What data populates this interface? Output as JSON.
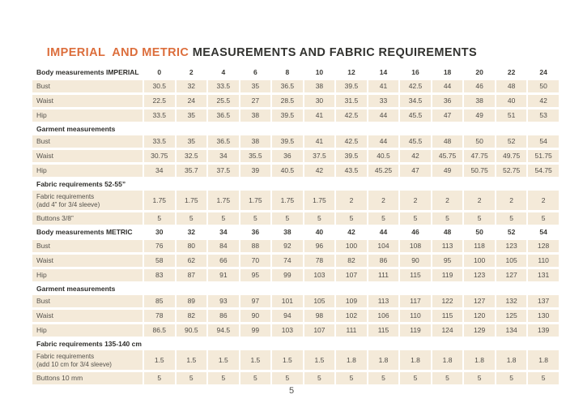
{
  "page": {
    "title_highlight": "IMPERIAL  AND METRIC ",
    "title_rest": "MEASUREMENTS AND FABRIC REQUIREMENTS",
    "page_number": "5"
  },
  "colors": {
    "accent": "#DC6E3C",
    "cell_bg": "#F4EAD9",
    "heading_text": "#2E2D2A",
    "body_text": "#55524C"
  },
  "table": {
    "columns": 13,
    "rows": [
      {
        "type": "sizes",
        "label": "Body measurements IMPERIAL",
        "values": [
          "0",
          "2",
          "4",
          "6",
          "8",
          "10",
          "12",
          "14",
          "16",
          "18",
          "20",
          "22",
          "24"
        ]
      },
      {
        "type": "data",
        "label": "Bust",
        "values": [
          "30.5",
          "32",
          "33.5",
          "35",
          "36.5",
          "38",
          "39.5",
          "41",
          "42.5",
          "44",
          "46",
          "48",
          "50"
        ]
      },
      {
        "type": "data",
        "label": "Waist",
        "values": [
          "22.5",
          "24",
          "25.5",
          "27",
          "28.5",
          "30",
          "31.5",
          "33",
          "34.5",
          "36",
          "38",
          "40",
          "42"
        ]
      },
      {
        "type": "data",
        "label": "Hip",
        "values": [
          "33.5",
          "35",
          "36.5",
          "38",
          "39.5",
          "41",
          "42.5",
          "44",
          "45.5",
          "47",
          "49",
          "51",
          "53"
        ]
      },
      {
        "type": "section",
        "label": "Garment measurements"
      },
      {
        "type": "data",
        "label": "Bust",
        "values": [
          "33.5",
          "35",
          "36.5",
          "38",
          "39.5",
          "41",
          "42.5",
          "44",
          "45.5",
          "48",
          "50",
          "52",
          "54"
        ]
      },
      {
        "type": "data",
        "label": "Waist",
        "values": [
          "30.75",
          "32.5",
          "34",
          "35.5",
          "36",
          "37.5",
          "39.5",
          "40.5",
          "42",
          "45.75",
          "47.75",
          "49.75",
          "51.75"
        ]
      },
      {
        "type": "data",
        "label": "Hip",
        "values": [
          "34",
          "35.7",
          "37.5",
          "39",
          "40.5",
          "42",
          "43.5",
          "45.25",
          "47",
          "49",
          "50.75",
          "52.75",
          "54.75"
        ]
      },
      {
        "type": "section",
        "label": "Fabric requirements 52-55”"
      },
      {
        "type": "data",
        "label": "Fabric requirements",
        "sublabel": "(add 4” for 3/4 sleeve)",
        "values": [
          "1.75",
          "1.75",
          "1.75",
          "1.75",
          "1.75",
          "1.75",
          "2",
          "2",
          "2",
          "2",
          "2",
          "2",
          "2"
        ]
      },
      {
        "type": "data",
        "label": "Buttons 3/8”",
        "values": [
          "5",
          "5",
          "5",
          "5",
          "5",
          "5",
          "5",
          "5",
          "5",
          "5",
          "5",
          "5",
          "5"
        ]
      },
      {
        "type": "sizes",
        "label": "Body measurements METRIC",
        "values": [
          "30",
          "32",
          "34",
          "36",
          "38",
          "40",
          "42",
          "44",
          "46",
          "48",
          "50",
          "52",
          "54"
        ]
      },
      {
        "type": "data",
        "label": "Bust",
        "values": [
          "76",
          "80",
          "84",
          "88",
          "92",
          "96",
          "100",
          "104",
          "108",
          "113",
          "118",
          "123",
          "128"
        ]
      },
      {
        "type": "data",
        "label": "Waist",
        "values": [
          "58",
          "62",
          "66",
          "70",
          "74",
          "78",
          "82",
          "86",
          "90",
          "95",
          "100",
          "105",
          "110"
        ]
      },
      {
        "type": "data",
        "label": "Hip",
        "values": [
          "83",
          "87",
          "91",
          "95",
          "99",
          "103",
          "107",
          "111",
          "115",
          "119",
          "123",
          "127",
          "131"
        ]
      },
      {
        "type": "section",
        "label": "Garment measurements"
      },
      {
        "type": "data",
        "label": "Bust",
        "values": [
          "85",
          "89",
          "93",
          "97",
          "101",
          "105",
          "109",
          "113",
          "117",
          "122",
          "127",
          "132",
          "137"
        ]
      },
      {
        "type": "data",
        "label": "Waist",
        "values": [
          "78",
          "82",
          "86",
          "90",
          "94",
          "98",
          "102",
          "106",
          "110",
          "115",
          "120",
          "125",
          "130"
        ]
      },
      {
        "type": "data",
        "label": "Hip",
        "values": [
          "86.5",
          "90.5",
          "94.5",
          "99",
          "103",
          "107",
          "111",
          "115",
          "119",
          "124",
          "129",
          "134",
          "139"
        ]
      },
      {
        "type": "section",
        "label": "Fabric requirements 135-140 cm"
      },
      {
        "type": "data",
        "label": "Fabric requirements",
        "sublabel": "(add 10 cm for 3/4 sleeve)",
        "values": [
          "1.5",
          "1.5",
          "1.5",
          "1.5",
          "1.5",
          "1.5",
          "1.8",
          "1.8",
          "1.8",
          "1.8",
          "1.8",
          "1.8",
          "1.8"
        ]
      },
      {
        "type": "data",
        "label": "Buttons 10 mm",
        "values": [
          "5",
          "5",
          "5",
          "5",
          "5",
          "5",
          "5",
          "5",
          "5",
          "5",
          "5",
          "5",
          "5"
        ]
      }
    ]
  }
}
